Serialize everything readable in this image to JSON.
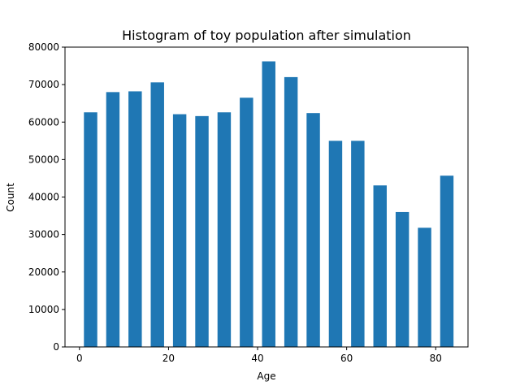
{
  "chart_data": {
    "type": "bar",
    "title": "Histogram of toy population after simulation",
    "xlabel": "Age",
    "ylabel": "Count",
    "x": [
      2.5,
      7.5,
      12.5,
      17.5,
      22.5,
      27.5,
      32.5,
      37.5,
      42.5,
      47.5,
      52.5,
      57.5,
      62.5,
      67.5,
      72.5,
      77.5,
      82.5
    ],
    "bar_width": 3,
    "values": [
      62600,
      68000,
      68200,
      70600,
      62100,
      61600,
      62600,
      66500,
      76200,
      72000,
      62400,
      55000,
      55000,
      43100,
      36000,
      31800,
      45700
    ],
    "color": "#1f77b4",
    "xlim": [
      -3.25,
      87.25
    ],
    "ylim": [
      0,
      80000
    ],
    "xticks": [
      0,
      20,
      40,
      60,
      80
    ],
    "yticks": [
      0,
      10000,
      20000,
      30000,
      40000,
      50000,
      60000,
      70000,
      80000
    ],
    "grid": false,
    "legend": false
  }
}
